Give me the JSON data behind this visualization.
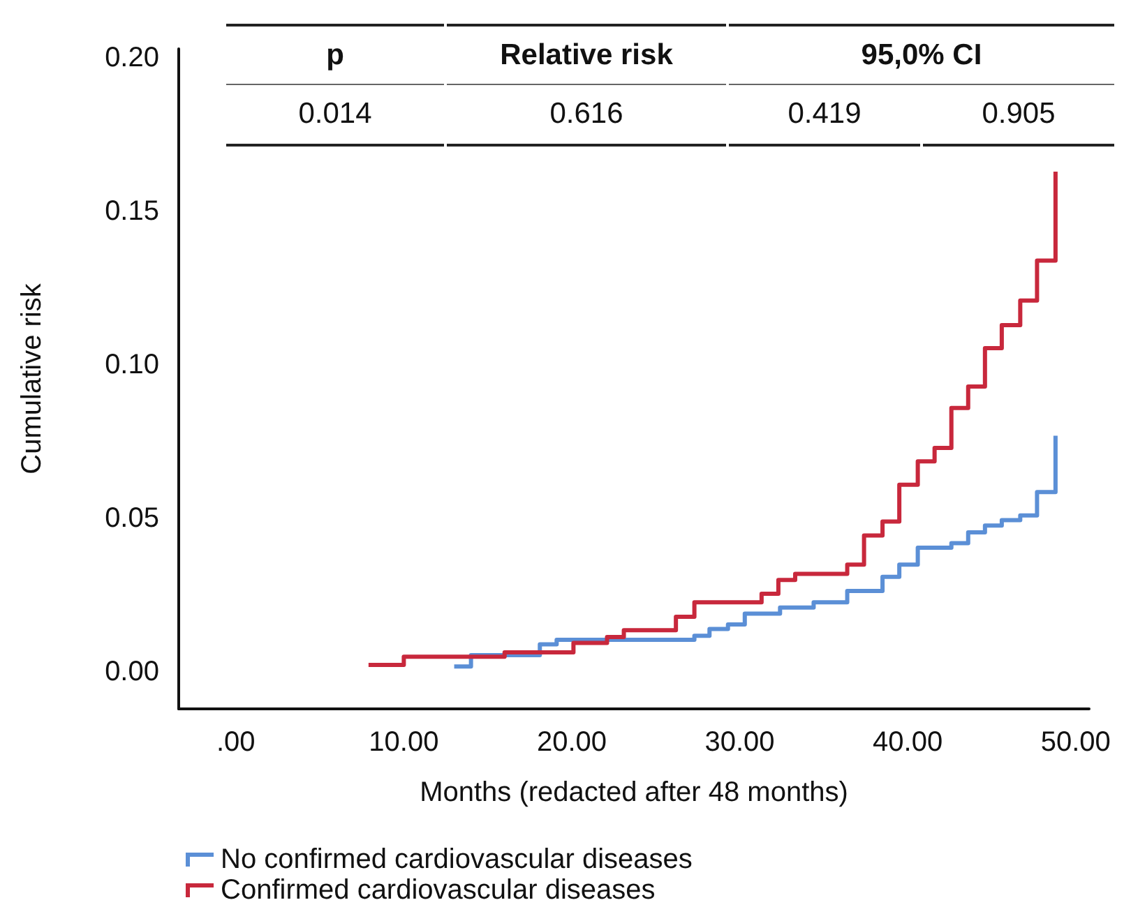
{
  "chart_data": {
    "type": "step",
    "xlabel": "Months (redacted after 48 months)",
    "ylabel": "Cumulative risk",
    "xlim": [
      -3.4,
      50.8
    ],
    "ylim": [
      -0.012,
      0.203
    ],
    "xticks": [
      {
        "value": 0,
        "label": ".00"
      },
      {
        "value": 10,
        "label": "10.00"
      },
      {
        "value": 20,
        "label": "20.00"
      },
      {
        "value": 30,
        "label": "30.00"
      },
      {
        "value": 40,
        "label": "40.00"
      },
      {
        "value": 50,
        "label": "50.00"
      }
    ],
    "yticks": [
      {
        "value": 0,
        "label": "0.00"
      },
      {
        "value": 0.05,
        "label": "0.05"
      },
      {
        "value": 0.1,
        "label": "0.10"
      },
      {
        "value": 0.15,
        "label": "0.15"
      },
      {
        "value": 0.2,
        "label": "0.20"
      }
    ],
    "series": [
      {
        "name": "No confirmed cardiovascular diseases",
        "color": "#5b8fd6",
        "x": [
          13,
          14,
          18.1,
          19.1,
          27.3,
          28.2,
          29.3,
          30.3,
          32.4,
          34.4,
          36.4,
          38.5,
          39.5,
          40.6,
          42.6,
          43.6,
          44.6,
          45.6,
          46.7,
          47.7,
          48.8
        ],
        "values": [
          0.0018,
          0.0055,
          0.009,
          0.0105,
          0.0118,
          0.014,
          0.0155,
          0.019,
          0.021,
          0.0227,
          0.0264,
          0.031,
          0.035,
          0.0405,
          0.042,
          0.0455,
          0.0477,
          0.0495,
          0.051,
          0.0586,
          0.077
        ]
      },
      {
        "name": "Confirmed cardiovascular diseases",
        "color": "#c8283c",
        "x": [
          7.9,
          10,
          16,
          20.1,
          22.1,
          23.1,
          26.2,
          27.3,
          31.3,
          32.3,
          33.3,
          36.4,
          37.4,
          38.5,
          39.5,
          40.6,
          41.6,
          42.6,
          43.6,
          44.6,
          45.6,
          46.7,
          47.7,
          48.8
        ],
        "values": [
          0.0023,
          0.005,
          0.0064,
          0.0095,
          0.0114,
          0.0136,
          0.018,
          0.0227,
          0.0255,
          0.03,
          0.032,
          0.035,
          0.0445,
          0.049,
          0.061,
          0.0686,
          0.073,
          0.086,
          0.093,
          0.1055,
          0.113,
          0.121,
          0.134,
          0.163
        ]
      }
    ],
    "annotations": [
      "p",
      "Relative risk",
      "95,0% CI",
      "0.014",
      "0.616",
      "0.419",
      "0.905"
    ],
    "legend": "bottom left",
    "grid": false,
    "marker": "none",
    "line_style": "solid"
  }
}
